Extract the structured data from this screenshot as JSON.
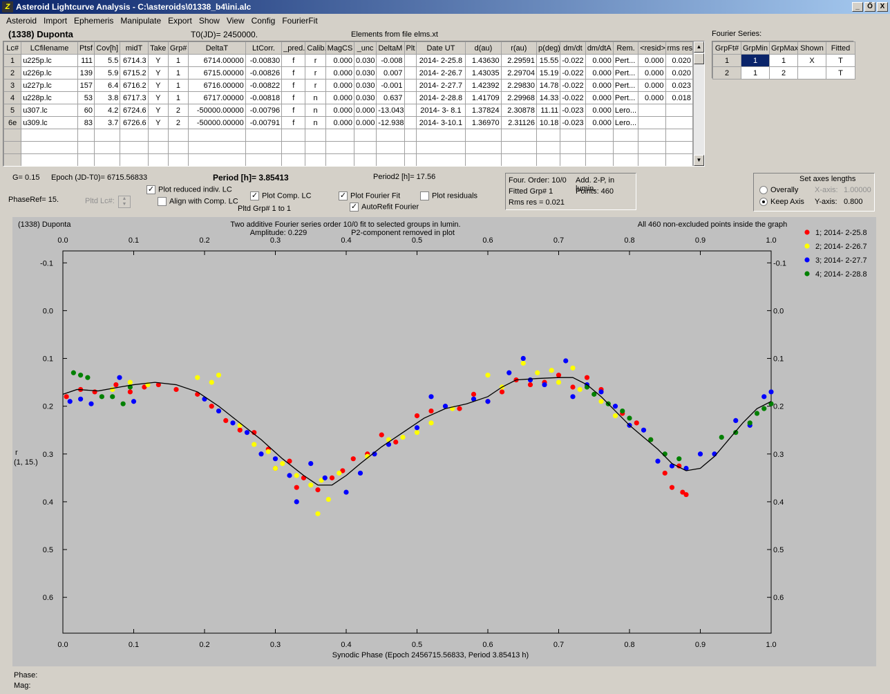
{
  "window": {
    "title": "Asteroid Lightcurve Analysis - C:\\asteroids\\01338_b4\\ini.alc",
    "min": "_",
    "max": "Ő",
    "close": "X"
  },
  "menu": [
    "Asteroid",
    "Import",
    "Ephemeris",
    "Manipulate",
    "Export",
    "Show",
    "View",
    "Config",
    "FourierFit"
  ],
  "header": {
    "asteroid": "(1338) Duponta",
    "t0": "T0(JD)= 2450000.",
    "elements": "Elements from file elms.xt"
  },
  "lc_table": {
    "columns": [
      "Lc#",
      "LCfilename",
      "Ptsf",
      "Cov[h]",
      "midT",
      "Take",
      "Grp#",
      "DeltaT",
      "LtCorr.",
      "_pred.",
      "Calib.",
      "MagCS",
      "_unc",
      "DeltaM",
      "Plt",
      "Date UT",
      "d(au)",
      "r(au)",
      "p(deg)",
      "dm/dt",
      "dm/dtA",
      "Rem.",
      "<resid>",
      "rms res"
    ],
    "rows": [
      [
        "1",
        "u225p.lc",
        "111",
        "5.5",
        "6714.3",
        "Y",
        "1",
        "6714.00000",
        "-0.00830",
        "f",
        "r",
        "0.000",
        "0.030",
        "-0.008",
        "",
        "2014- 2-25.8",
        "1.43630",
        "2.29591",
        "15.55",
        "-0.022",
        "0.000",
        "Pert...",
        "0.000",
        "0.020"
      ],
      [
        "2",
        "u226p.lc",
        "139",
        "5.9",
        "6715.2",
        "Y",
        "1",
        "6715.00000",
        "-0.00826",
        "f",
        "r",
        "0.000",
        "0.030",
        "0.007",
        "",
        "2014- 2-26.7",
        "1.43035",
        "2.29704",
        "15.19",
        "-0.022",
        "0.000",
        "Pert...",
        "0.000",
        "0.020"
      ],
      [
        "3",
        "u227p.lc",
        "157",
        "6.4",
        "6716.2",
        "Y",
        "1",
        "6716.00000",
        "-0.00822",
        "f",
        "r",
        "0.000",
        "0.030",
        "-0.001",
        "",
        "2014- 2-27.7",
        "1.42392",
        "2.29830",
        "14.78",
        "-0.022",
        "0.000",
        "Pert...",
        "0.000",
        "0.023"
      ],
      [
        "4",
        "u228p.lc",
        "53",
        "3.8",
        "6717.3",
        "Y",
        "1",
        "6717.00000",
        "-0.00818",
        "f",
        "n",
        "0.000",
        "0.030",
        "0.637",
        "",
        "2014- 2-28.8",
        "1.41709",
        "2.29968",
        "14.33",
        "-0.022",
        "0.000",
        "Pert...",
        "0.000",
        "0.018"
      ],
      [
        "5",
        "u307.lc",
        "60",
        "4.2",
        "6724.6",
        "Y",
        "2",
        "-50000.00000",
        "-0.00796",
        "f",
        "n",
        "0.000",
        "0.000",
        "-13.043",
        "",
        "2014- 3- 8.1",
        "1.37824",
        "2.30878",
        "11.11",
        "-0.023",
        "0.000",
        "Lero...",
        "",
        ""
      ],
      [
        "6e",
        "u309.lc",
        "83",
        "3.7",
        "6726.6",
        "Y",
        "2",
        "-50000.00000",
        "-0.00791",
        "f",
        "n",
        "0.000",
        "0.000",
        "-12.938",
        "",
        "2014- 3-10.1",
        "1.36970",
        "2.31126",
        "10.18",
        "-0.023",
        "0.000",
        "Lero...",
        "",
        ""
      ]
    ]
  },
  "fourier_table": {
    "label": "Fourier Series:",
    "columns": [
      "GrpFt#",
      "GrpMin",
      "GrpMax",
      "Shown",
      "Fitted"
    ],
    "rows": [
      [
        "1",
        "1",
        "1",
        "X",
        "T"
      ],
      [
        "2",
        "1",
        "2",
        "",
        "T"
      ]
    ]
  },
  "controls": {
    "g": "G= 0.15",
    "epoch": "Epoch (JD-T0)= 6715.56833",
    "period": "Period [h]= 3.85413",
    "period2": "Period2 [h]= 17.56",
    "phaseref": "PhaseRef= 15.",
    "pltdlc": "Pltd Lc#:",
    "cb_reduced": "Plot reduced indiv. LC",
    "cb_align": "Align with Comp. LC",
    "cb_comp": "Plot Comp. LC",
    "pltd_grp": "Pltd Grp#  1   to   1",
    "cb_fourier": "Plot Fourier Fit",
    "cb_autorefit": "AutoRefit Fourier",
    "cb_resid": "Plot residuals",
    "info1": "Four. Order: 10/0",
    "info2": "Add. 2-P, in lumin.",
    "info3": "Fitted Grp# 1",
    "info4": "Points: 460",
    "info5": "Rms res      = 0.021",
    "axes_title": "Set axes lengths",
    "rad_overall": "Overally",
    "rad_keep": "Keep Axis",
    "xaxis_label": "X-axis:",
    "xaxis_val": "1.00000",
    "yaxis_label": "Y-axis:",
    "yaxis_val": "0.800"
  },
  "plot": {
    "name": "(1338) Duponta",
    "line1": "Two additive Fourier series order 10/0 fit to selected groups in lumin.",
    "line2a": "Amplitude: 0.229",
    "line2b": "P2-component removed in plot",
    "right": "All 460 non-excluded points inside the graph",
    "ylabel1": "r",
    "ylabel2": "(1, 15.)",
    "xlabel": "Synodic Phase (Epoch 2456715.56833, Period 3.85413 h)"
  },
  "status": {
    "phase": "Phase:",
    "mag": "Mag:"
  },
  "chart_data": {
    "type": "scatter",
    "x": [
      0,
      1
    ],
    "ylim": [
      -0.125,
      0.675
    ],
    "y_inverted": true,
    "xticks": [
      "0.0",
      "0.1",
      "0.2",
      "0.3",
      "0.4",
      "0.5",
      "0.6",
      "0.7",
      "0.8",
      "0.9",
      "1.0"
    ],
    "yticks": [
      "-0.1",
      "0.0",
      "0.1",
      "0.2",
      "0.3",
      "0.4",
      "0.5",
      "0.6"
    ],
    "series": [
      {
        "name": "1; 2014- 2-25.8",
        "color": "#ff0000",
        "points": [
          [
            0.005,
            0.18
          ],
          [
            0.025,
            0.165
          ],
          [
            0.045,
            0.17
          ],
          [
            0.075,
            0.155
          ],
          [
            0.095,
            0.17
          ],
          [
            0.115,
            0.16
          ],
          [
            0.135,
            0.155
          ],
          [
            0.16,
            0.165
          ],
          [
            0.19,
            0.175
          ],
          [
            0.21,
            0.2
          ],
          [
            0.23,
            0.23
          ],
          [
            0.25,
            0.25
          ],
          [
            0.27,
            0.255
          ],
          [
            0.29,
            0.29
          ],
          [
            0.3,
            0.33
          ],
          [
            0.32,
            0.315
          ],
          [
            0.33,
            0.37
          ],
          [
            0.34,
            0.35
          ],
          [
            0.36,
            0.375
          ],
          [
            0.38,
            0.35
          ],
          [
            0.395,
            0.335
          ],
          [
            0.41,
            0.31
          ],
          [
            0.43,
            0.3
          ],
          [
            0.45,
            0.26
          ],
          [
            0.47,
            0.275
          ],
          [
            0.5,
            0.22
          ],
          [
            0.52,
            0.21
          ],
          [
            0.56,
            0.205
          ],
          [
            0.58,
            0.175
          ],
          [
            0.6,
            0.19
          ],
          [
            0.62,
            0.17
          ],
          [
            0.64,
            0.145
          ],
          [
            0.66,
            0.155
          ],
          [
            0.68,
            0.15
          ],
          [
            0.7,
            0.135
          ],
          [
            0.72,
            0.16
          ],
          [
            0.74,
            0.14
          ],
          [
            0.76,
            0.165
          ],
          [
            0.79,
            0.215
          ],
          [
            0.81,
            0.235
          ],
          [
            0.83,
            0.27
          ],
          [
            0.85,
            0.34
          ],
          [
            0.87,
            0.325
          ],
          [
            0.86,
            0.37
          ],
          [
            0.875,
            0.38
          ],
          [
            0.88,
            0.385
          ]
        ]
      },
      {
        "name": "2; 2014- 2-26.7",
        "color": "#ffff00",
        "points": [
          [
            0.07,
            0.165
          ],
          [
            0.095,
            0.15
          ],
          [
            0.12,
            0.155
          ],
          [
            0.19,
            0.14
          ],
          [
            0.21,
            0.15
          ],
          [
            0.22,
            0.135
          ],
          [
            0.25,
            0.24
          ],
          [
            0.27,
            0.28
          ],
          [
            0.29,
            0.295
          ],
          [
            0.3,
            0.33
          ],
          [
            0.31,
            0.32
          ],
          [
            0.33,
            0.345
          ],
          [
            0.35,
            0.365
          ],
          [
            0.36,
            0.425
          ],
          [
            0.365,
            0.355
          ],
          [
            0.375,
            0.395
          ],
          [
            0.39,
            0.34
          ],
          [
            0.43,
            0.305
          ],
          [
            0.46,
            0.27
          ],
          [
            0.48,
            0.265
          ],
          [
            0.5,
            0.255
          ],
          [
            0.52,
            0.235
          ],
          [
            0.55,
            0.205
          ],
          [
            0.6,
            0.135
          ],
          [
            0.62,
            0.16
          ],
          [
            0.65,
            0.11
          ],
          [
            0.67,
            0.13
          ],
          [
            0.69,
            0.125
          ],
          [
            0.7,
            0.15
          ],
          [
            0.72,
            0.12
          ],
          [
            0.73,
            0.165
          ],
          [
            0.76,
            0.19
          ],
          [
            0.78,
            0.22
          ]
        ]
      },
      {
        "name": "3; 2014- 2-27.7",
        "color": "#0000ff",
        "points": [
          [
            0.01,
            0.19
          ],
          [
            0.025,
            0.185
          ],
          [
            0.04,
            0.195
          ],
          [
            0.08,
            0.14
          ],
          [
            0.1,
            0.19
          ],
          [
            0.2,
            0.185
          ],
          [
            0.22,
            0.21
          ],
          [
            0.24,
            0.235
          ],
          [
            0.26,
            0.255
          ],
          [
            0.28,
            0.3
          ],
          [
            0.3,
            0.31
          ],
          [
            0.32,
            0.345
          ],
          [
            0.33,
            0.4
          ],
          [
            0.35,
            0.32
          ],
          [
            0.37,
            0.35
          ],
          [
            0.4,
            0.38
          ],
          [
            0.42,
            0.34
          ],
          [
            0.44,
            0.3
          ],
          [
            0.46,
            0.28
          ],
          [
            0.5,
            0.245
          ],
          [
            0.52,
            0.18
          ],
          [
            0.54,
            0.2
          ],
          [
            0.58,
            0.185
          ],
          [
            0.6,
            0.19
          ],
          [
            0.63,
            0.13
          ],
          [
            0.65,
            0.1
          ],
          [
            0.66,
            0.145
          ],
          [
            0.68,
            0.155
          ],
          [
            0.71,
            0.105
          ],
          [
            0.72,
            0.18
          ],
          [
            0.74,
            0.155
          ],
          [
            0.76,
            0.17
          ],
          [
            0.78,
            0.2
          ],
          [
            0.8,
            0.24
          ],
          [
            0.82,
            0.25
          ],
          [
            0.84,
            0.315
          ],
          [
            0.86,
            0.325
          ],
          [
            0.88,
            0.33
          ],
          [
            0.9,
            0.3
          ],
          [
            0.92,
            0.3
          ],
          [
            0.95,
            0.23
          ],
          [
            0.97,
            0.24
          ],
          [
            0.99,
            0.18
          ],
          [
            1.0,
            0.17
          ]
        ]
      },
      {
        "name": "4; 2014- 2-28.8",
        "color": "#008000",
        "points": [
          [
            0.015,
            0.13
          ],
          [
            0.025,
            0.135
          ],
          [
            0.035,
            0.14
          ],
          [
            0.055,
            0.18
          ],
          [
            0.07,
            0.18
          ],
          [
            0.085,
            0.195
          ],
          [
            0.095,
            0.16
          ],
          [
            0.74,
            0.16
          ],
          [
            0.75,
            0.175
          ],
          [
            0.77,
            0.195
          ],
          [
            0.79,
            0.21
          ],
          [
            0.8,
            0.225
          ],
          [
            0.83,
            0.27
          ],
          [
            0.85,
            0.3
          ],
          [
            0.87,
            0.31
          ],
          [
            0.93,
            0.265
          ],
          [
            0.95,
            0.255
          ],
          [
            0.97,
            0.235
          ],
          [
            0.98,
            0.215
          ],
          [
            0.99,
            0.205
          ],
          [
            1.0,
            0.195
          ]
        ]
      },
      {
        "name": "fit",
        "color": "#000000",
        "line": [
          [
            0,
            0.175
          ],
          [
            0.02,
            0.165
          ],
          [
            0.05,
            0.168
          ],
          [
            0.08,
            0.16
          ],
          [
            0.1,
            0.155
          ],
          [
            0.13,
            0.15
          ],
          [
            0.16,
            0.155
          ],
          [
            0.19,
            0.17
          ],
          [
            0.22,
            0.2
          ],
          [
            0.25,
            0.235
          ],
          [
            0.28,
            0.27
          ],
          [
            0.31,
            0.31
          ],
          [
            0.34,
            0.345
          ],
          [
            0.36,
            0.365
          ],
          [
            0.38,
            0.365
          ],
          [
            0.4,
            0.345
          ],
          [
            0.42,
            0.32
          ],
          [
            0.45,
            0.285
          ],
          [
            0.48,
            0.255
          ],
          [
            0.51,
            0.225
          ],
          [
            0.54,
            0.205
          ],
          [
            0.57,
            0.195
          ],
          [
            0.6,
            0.18
          ],
          [
            0.62,
            0.16
          ],
          [
            0.64,
            0.145
          ],
          [
            0.67,
            0.142
          ],
          [
            0.7,
            0.14
          ],
          [
            0.72,
            0.14
          ],
          [
            0.74,
            0.155
          ],
          [
            0.76,
            0.18
          ],
          [
            0.78,
            0.21
          ],
          [
            0.8,
            0.24
          ],
          [
            0.82,
            0.265
          ],
          [
            0.84,
            0.29
          ],
          [
            0.86,
            0.32
          ],
          [
            0.88,
            0.335
          ],
          [
            0.9,
            0.33
          ],
          [
            0.92,
            0.305
          ],
          [
            0.94,
            0.27
          ],
          [
            0.96,
            0.235
          ],
          [
            0.98,
            0.205
          ],
          [
            1.0,
            0.19
          ]
        ]
      }
    ]
  }
}
